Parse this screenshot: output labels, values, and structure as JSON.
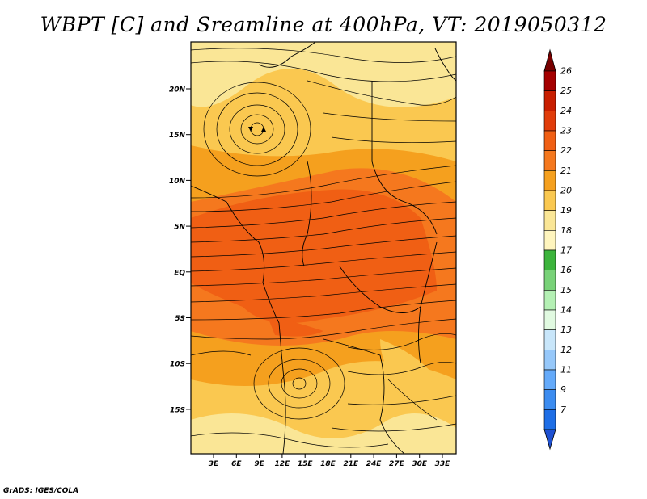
{
  "title": "WBPT [C] and Sreamline at 400hPa, VT: 2019050312",
  "credit": "GrADS: IGES/COLA",
  "map": {
    "lat_ticks": [
      "20N",
      "15N",
      "10N",
      "5N",
      "EQ",
      "5S",
      "10S",
      "15S"
    ],
    "lon_ticks": [
      "3E",
      "6E",
      "9E",
      "12E",
      "15E",
      "18E",
      "21E",
      "24E",
      "27E",
      "30E",
      "33E"
    ]
  },
  "colorbar": {
    "labels": [
      "26",
      "25",
      "24",
      "23",
      "22",
      "21",
      "20",
      "19",
      "18",
      "17",
      "16",
      "15",
      "14",
      "13",
      "12",
      "11",
      "9",
      "7"
    ],
    "colors": [
      "#a50000",
      "#c81e00",
      "#e13c0a",
      "#f05f14",
      "#f5781e",
      "#f5a01e",
      "#fac850",
      "#fae696",
      "#fff5be",
      "#3cb43c",
      "#78d278",
      "#b4f0b4",
      "#e1fae1",
      "#c8e6fa",
      "#96c8fa",
      "#64aafa",
      "#3c8cf0",
      "#1e6ee6"
    ],
    "top_arrow_color": "#780000",
    "bottom_arrow_color": "#1e50d2"
  }
}
